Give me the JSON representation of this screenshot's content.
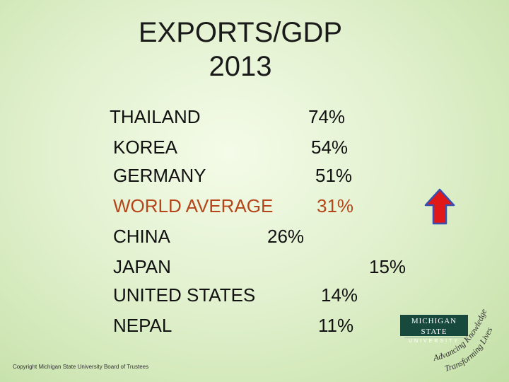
{
  "slide": {
    "title_line1": "EXPORTS/GDP",
    "title_line2": "2013",
    "rows": [
      {
        "country": "THAILAND",
        "value": "74%"
      },
      {
        "country": "KOREA",
        "value": "54%"
      },
      {
        "country": "GERMANY",
        "value": "51%"
      },
      {
        "country": "WORLD AVERAGE",
        "value": "31%"
      },
      {
        "country": "CHINA",
        "value": "26%"
      },
      {
        "country": "JAPAN",
        "value": "15%"
      },
      {
        "country": "UNITED STATES",
        "value": "14%"
      },
      {
        "country": "NEPAL",
        "value": "11%"
      }
    ],
    "highlight_color": "#b5451b"
  },
  "logo": {
    "line1": "MICHIGAN STATE",
    "line2": "UNIVERSITY",
    "tagline1": "Advancing Knowledge.",
    "tagline2": "Transforming Lives."
  },
  "icons": {
    "arrow": "red-up-arrow-icon"
  },
  "footer": {
    "copyright": "Copyright Michigan State University Board of Trustees"
  }
}
